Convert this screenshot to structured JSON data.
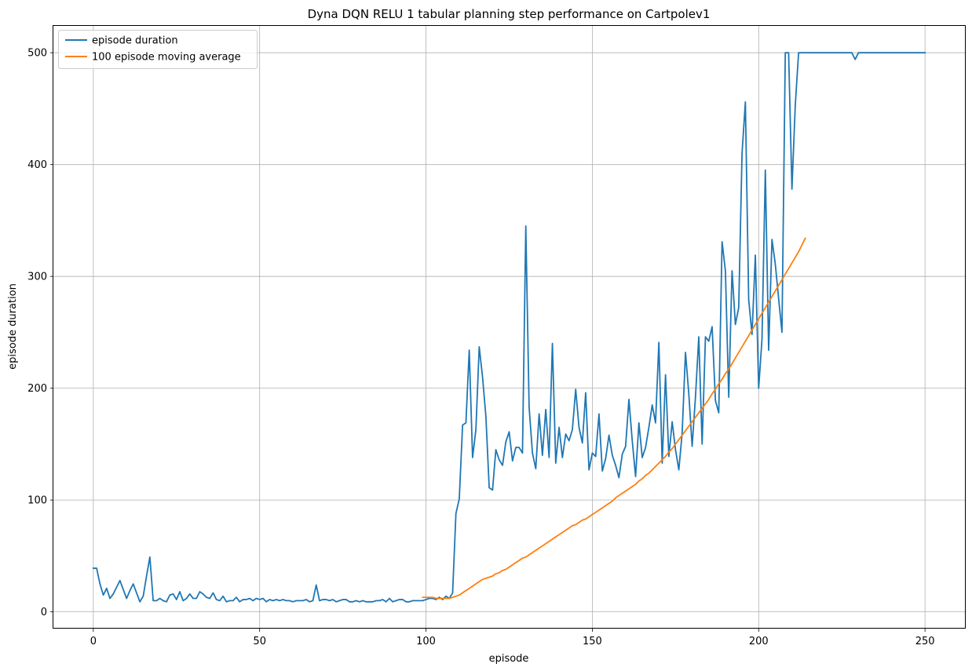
{
  "chart_data": {
    "type": "line",
    "title": "Dyna DQN RELU 1 tabular planning step performance on Cartpolev1",
    "xlabel": "episode",
    "ylabel": "episode duration",
    "xlim": [
      -12,
      262
    ],
    "ylim": [
      -15,
      524
    ],
    "xticks": [
      0,
      50,
      100,
      150,
      200,
      250
    ],
    "yticks": [
      0,
      100,
      200,
      300,
      400,
      500
    ],
    "grid": true,
    "legend_position": "top-left",
    "series": [
      {
        "name": "episode duration",
        "color": "#1f77b4",
        "x_start": 0,
        "values": [
          39,
          39,
          25,
          15,
          21,
          12,
          16,
          22,
          28,
          20,
          12,
          19,
          25,
          17,
          9,
          14,
          32,
          49,
          10,
          10,
          12,
          10,
          9,
          15,
          16,
          11,
          18,
          10,
          12,
          16,
          12,
          12,
          18,
          16,
          13,
          12,
          17,
          11,
          10,
          14,
          9,
          10,
          10,
          13,
          9,
          11,
          11,
          12,
          10,
          12,
          11,
          12,
          9,
          11,
          10,
          11,
          10,
          11,
          10,
          10,
          9,
          10,
          10,
          10,
          11,
          9,
          10,
          24,
          10,
          11,
          11,
          10,
          11,
          9,
          10,
          11,
          11,
          9,
          9,
          10,
          9,
          10,
          9,
          9,
          9,
          10,
          10,
          11,
          9,
          12,
          9,
          10,
          11,
          11,
          9,
          9,
          10,
          10,
          10,
          10,
          11,
          12,
          12,
          11,
          13,
          11,
          14,
          12,
          17,
          88,
          101,
          167,
          169,
          234,
          138,
          163,
          237,
          210,
          175,
          111,
          109,
          145,
          136,
          131,
          152,
          161,
          135,
          147,
          147,
          142,
          345,
          183,
          142,
          128,
          177,
          140,
          181,
          138,
          240,
          133,
          165,
          138,
          159,
          153,
          163,
          199,
          165,
          151,
          196,
          127,
          142,
          139,
          177,
          126,
          137,
          158,
          140,
          131,
          120,
          141,
          148,
          190,
          153,
          121,
          169,
          138,
          147,
          165,
          185,
          169,
          241,
          133,
          212,
          139,
          170,
          145,
          127,
          160,
          232,
          195,
          148,
          192,
          246,
          150,
          246,
          242,
          255,
          189,
          178,
          331,
          305,
          192,
          305,
          257,
          272,
          410,
          456,
          279,
          248,
          319,
          200,
          244,
          395,
          234,
          333,
          311,
          280,
          250,
          500,
          500,
          378,
          453,
          500,
          500,
          500,
          500,
          500,
          500,
          500,
          500,
          500,
          500,
          500,
          500,
          500,
          500,
          500,
          500,
          500,
          494,
          500,
          500,
          500,
          500,
          500,
          500,
          500,
          500,
          500,
          500,
          500,
          500,
          500,
          500,
          500,
          500,
          500,
          500,
          500,
          500,
          500
        ]
      },
      {
        "name": "100 episode moving average",
        "color": "#ff7f0e",
        "x_start": 99,
        "values": [
          13,
          13,
          13,
          13,
          12,
          12,
          12,
          12,
          12,
          13,
          14,
          15,
          17,
          19,
          21,
          23,
          25,
          27,
          29,
          30,
          31,
          32,
          34,
          35,
          37,
          38,
          40,
          42,
          44,
          46,
          48,
          49,
          51,
          53,
          55,
          57,
          59,
          61,
          63,
          65,
          67,
          69,
          71,
          73,
          75,
          77,
          78,
          80,
          82,
          83,
          85,
          87,
          89,
          91,
          93,
          95,
          97,
          99,
          102,
          104,
          106,
          108,
          110,
          112,
          114,
          117,
          119,
          122,
          124,
          127,
          130,
          133,
          136,
          139,
          143,
          146,
          150,
          154,
          158,
          162,
          166,
          170,
          174,
          178,
          182,
          186,
          190,
          195,
          199,
          204,
          208,
          213,
          217,
          222,
          227,
          232,
          237,
          242,
          247,
          252,
          257,
          262,
          267,
          272,
          277,
          282,
          287,
          292,
          297,
          302,
          307,
          312,
          317,
          322,
          328,
          334
        ]
      }
    ]
  }
}
